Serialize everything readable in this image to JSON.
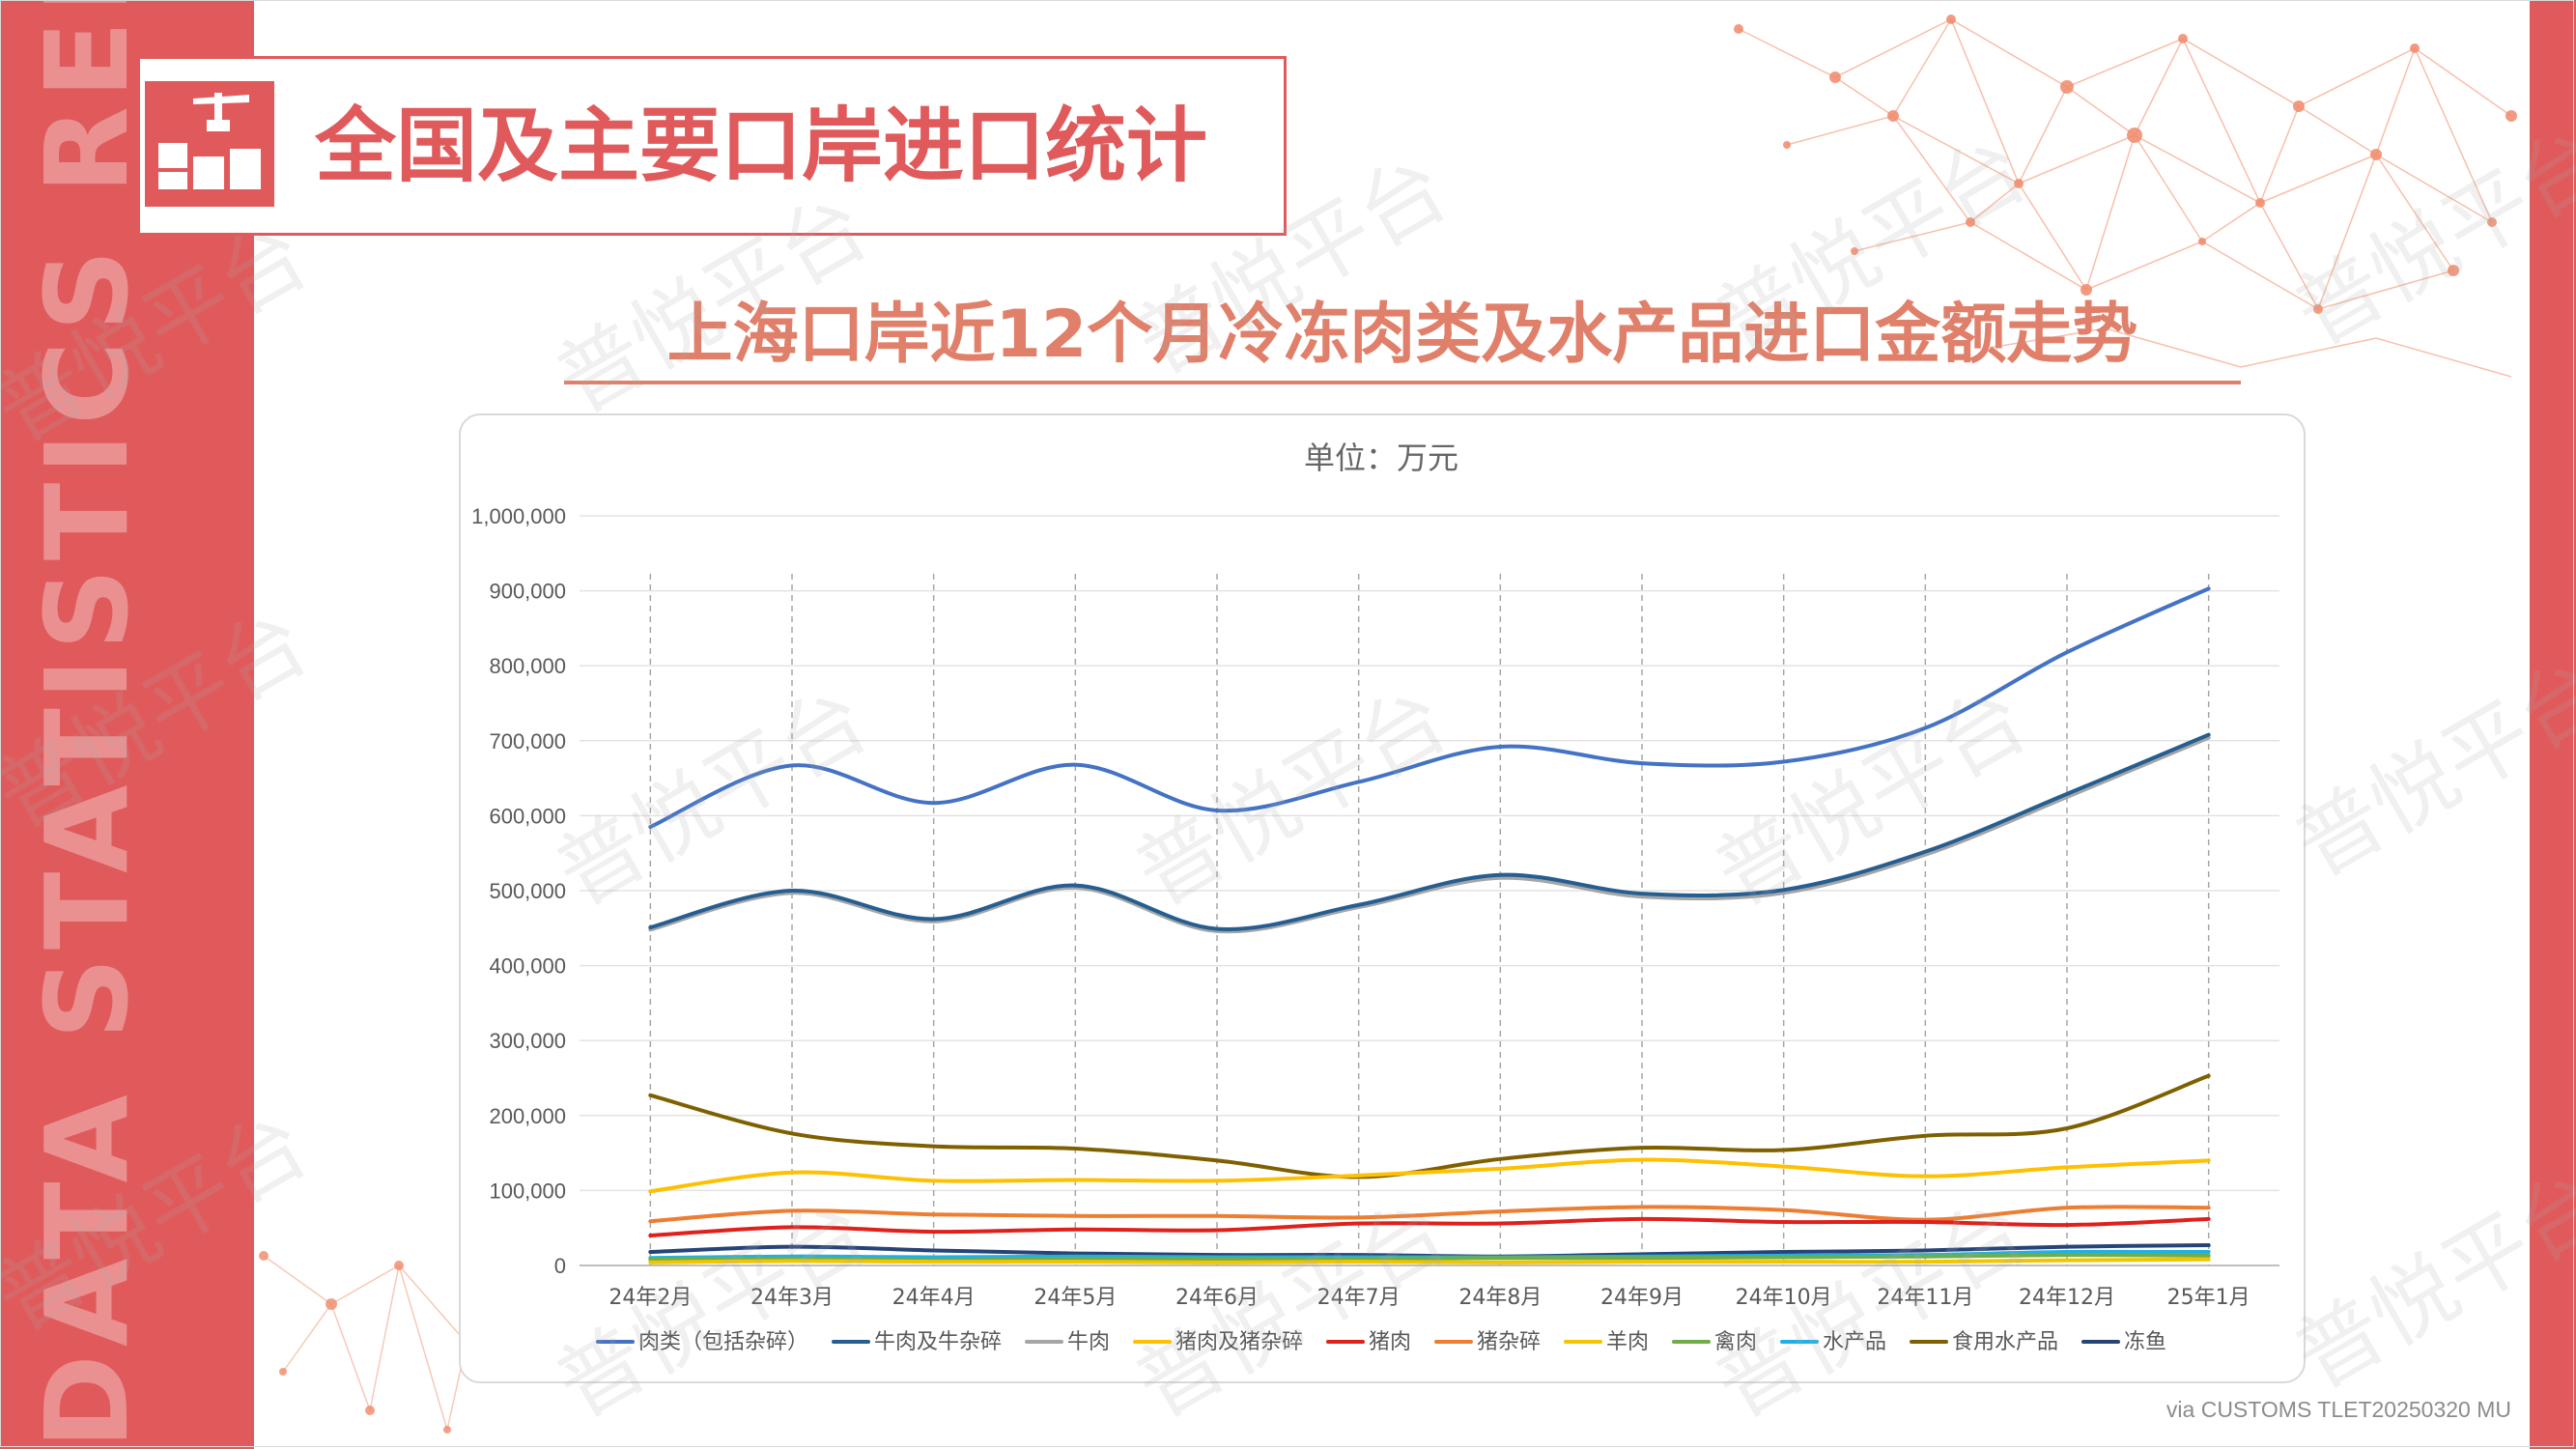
{
  "band_text": "DATA STATISTICS REPORT",
  "header": {
    "title": "全国及主要口岸进口统计"
  },
  "chart_title": "上海口岸近12个月冷冻肉类及水产品进口金额走势",
  "unit_label": "单位：万元",
  "source_note": "via CUSTOMS TLET20250320 MU",
  "watermark_text": "普悦平台",
  "chart_data": {
    "type": "line",
    "categories": [
      "24年2月",
      "24年3月",
      "24年4月",
      "24年5月",
      "24年6月",
      "24年7月",
      "24年8月",
      "24年9月",
      "24年10月",
      "24年11月",
      "24年12月",
      "25年1月"
    ],
    "ylim": [
      0,
      1000000
    ],
    "yticks": [
      "0",
      "100,000",
      "200,000",
      "300,000",
      "400,000",
      "500,000",
      "600,000",
      "700,000",
      "800,000",
      "900,000",
      "1,000,000"
    ],
    "grid": true,
    "legend_position": "bottom",
    "series": [
      {
        "name": "肉类（包括杂碎）",
        "color": "#4472c4",
        "values": [
          585000,
          667000,
          617000,
          668000,
          607000,
          645000,
          692000,
          670000,
          672000,
          717000,
          818000,
          903000
        ]
      },
      {
        "name": "牛肉及牛杂碎",
        "color": "#255e91",
        "values": [
          451000,
          500000,
          462000,
          507000,
          449000,
          481000,
          521000,
          496000,
          501000,
          552000,
          629000,
          708000
        ]
      },
      {
        "name": "牛肉",
        "color": "#a5a5a5",
        "values": [
          448000,
          497000,
          459000,
          504000,
          446000,
          478000,
          517000,
          492000,
          497000,
          548000,
          625000,
          704000
        ]
      },
      {
        "name": "猪肉及猪杂碎",
        "color": "#ffc000",
        "values": [
          99000,
          124000,
          113000,
          114000,
          113000,
          120000,
          129000,
          141000,
          132000,
          119000,
          131000,
          140000
        ]
      },
      {
        "name": "猪肉",
        "color": "#e0201b",
        "values": [
          40000,
          51000,
          45000,
          48000,
          47000,
          56000,
          56000,
          62000,
          58000,
          58000,
          54000,
          62000
        ]
      },
      {
        "name": "猪杂碎",
        "color": "#ed7d31",
        "values": [
          59000,
          73000,
          68000,
          66000,
          66000,
          64000,
          72000,
          78000,
          74000,
          61000,
          77000,
          77000
        ]
      },
      {
        "name": "羊肉",
        "color": "#f2c500",
        "values": [
          4000,
          6000,
          5000,
          5000,
          4000,
          5000,
          4000,
          5000,
          5000,
          5000,
          7000,
          8000
        ]
      },
      {
        "name": "禽肉",
        "color": "#70ad47",
        "values": [
          8000,
          9000,
          7000,
          9000,
          9000,
          9000,
          10000,
          10000,
          11000,
          12000,
          14000,
          13000
        ]
      },
      {
        "name": "水产品",
        "color": "#1fb1e6",
        "values": [
          10000,
          12000,
          11000,
          12000,
          11000,
          11000,
          11000,
          12000,
          13000,
          14000,
          18000,
          18000
        ]
      },
      {
        "name": "食用水产品",
        "color": "#7f6000",
        "values": [
          227000,
          176000,
          159000,
          156000,
          140000,
          118000,
          142000,
          157000,
          154000,
          173000,
          183000,
          253000
        ]
      },
      {
        "name": "冻鱼",
        "color": "#264478",
        "values": [
          18000,
          25000,
          20000,
          16000,
          14000,
          14000,
          12000,
          15000,
          18000,
          20000,
          25000,
          27000
        ]
      }
    ]
  }
}
